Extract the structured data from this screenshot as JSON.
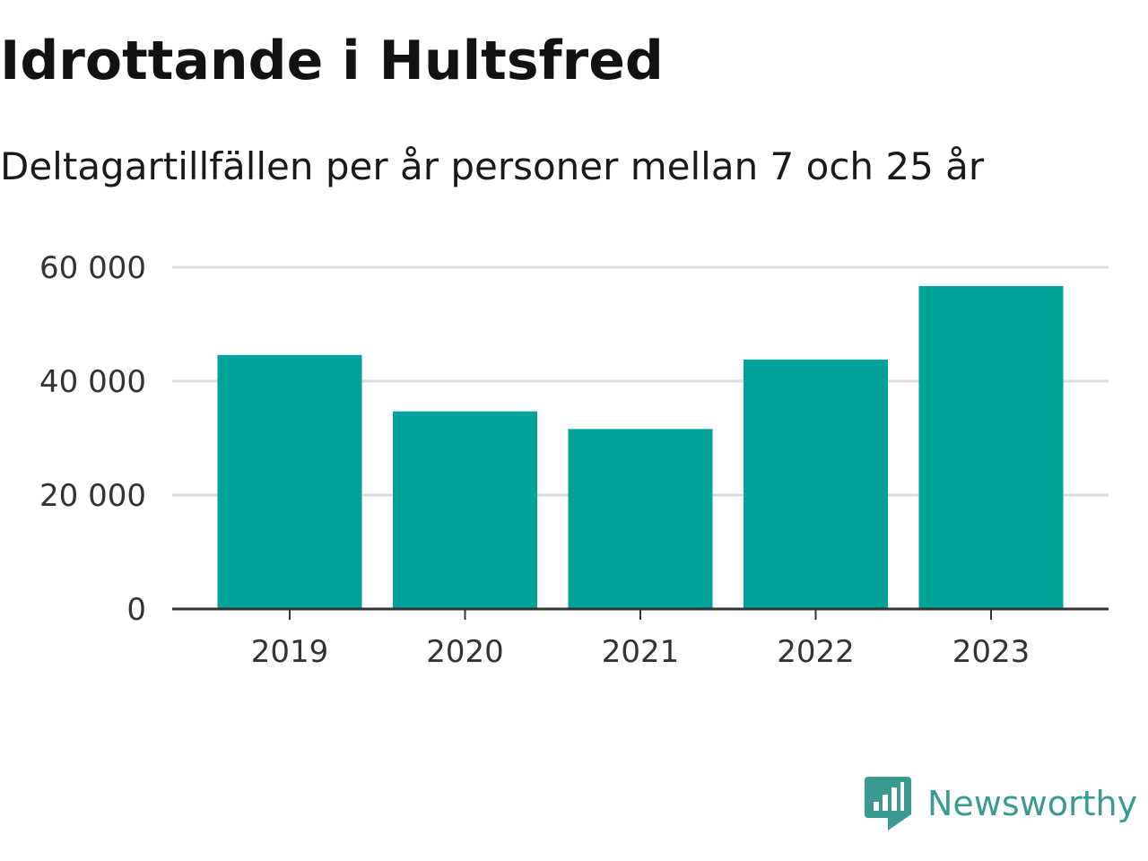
{
  "chart_data": {
    "type": "bar",
    "title": "Idrottande i Hultsfred",
    "subtitle": "Deltagartillfällen per år personer mellan 7 och 25 år",
    "categories": [
      "2019",
      "2020",
      "2021",
      "2022",
      "2023"
    ],
    "values": [
      44600,
      34700,
      31600,
      43800,
      56700
    ],
    "yticks": [
      0,
      20000,
      40000,
      60000
    ],
    "ytick_labels": [
      "0",
      "20 000",
      "40 000",
      "60 000"
    ],
    "ylim": [
      0,
      60000
    ],
    "xlabel": "",
    "ylabel": "",
    "grid": true,
    "legend": "none",
    "bar_color": "#00a39a"
  },
  "brand": {
    "name": "Newsworthy",
    "icon": "newsworthy-logo-icon",
    "color": "#3a9a92"
  }
}
